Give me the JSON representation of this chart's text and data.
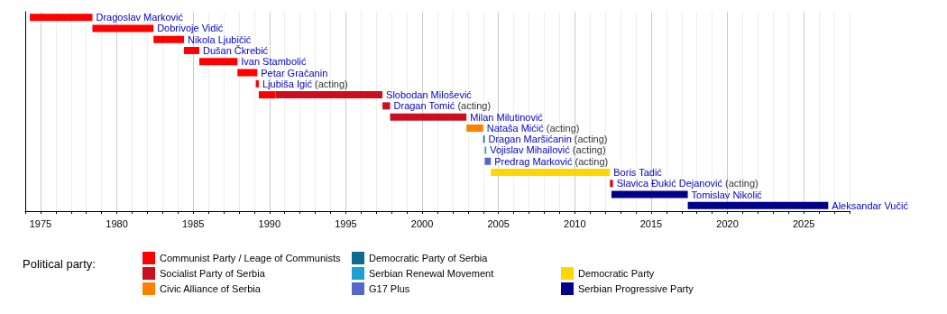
{
  "chart_data": {
    "type": "bar",
    "orientation": "horizontal",
    "stacked": true,
    "legend_title": "Political party:",
    "legend": "bottom",
    "grid": "x",
    "tick_labels": "x",
    "categories": [
      "Dragoslav Marković",
      "Dobrivoje Vidić",
      "Nikola Ljubičić",
      "Dušan Čkrebić",
      "Ivan Stambolić",
      "Petar Gračanin",
      "Ljubiša Igić (acting)",
      "Slobodan Milošević",
      "Dragan Tomić (acting)",
      "Milan Milutinović",
      "Nataša Mićić (acting)",
      "Dragan Maršićanin (acting)",
      "Vojislav Mihailović (acting)",
      "Predrag Marković (acting)",
      "Boris Tadić",
      "Slavica Đukić Dejanović (acting)",
      "Tomislav Nikolić",
      "Aleksandar Vučić"
    ],
    "xlim": [
      1974,
      2028
    ],
    "xticks": [
      1975,
      1980,
      1985,
      1990,
      1995,
      2000,
      2005,
      2010,
      2015,
      2020,
      2025
    ],
    "series": [
      {
        "name": "Communist Party / Leage of Communists",
        "color": "#ff0000",
        "base": [
          1974.3,
          1978.4,
          1982.4,
          1984.4,
          1985.4,
          1987.9,
          1989.1,
          1989.3,
          null,
          null,
          null,
          null,
          null,
          null,
          null,
          null,
          null,
          null
        ],
        "values": [
          4.1,
          4.0,
          2.0,
          1.0,
          2.5,
          1.3,
          0.2,
          1.1,
          null,
          null,
          null,
          null,
          null,
          null,
          null,
          null,
          null,
          null
        ]
      },
      {
        "name": "Socialist Party of Serbia",
        "color": "#cc0f1f",
        "base": [
          null,
          null,
          null,
          null,
          null,
          null,
          null,
          1990.4,
          1997.4,
          1997.9,
          null,
          null,
          null,
          null,
          null,
          2012.3,
          null,
          null
        ],
        "values": [
          null,
          null,
          null,
          null,
          null,
          null,
          null,
          7.0,
          0.5,
          5.0,
          null,
          null,
          null,
          null,
          null,
          0.2,
          null,
          null
        ]
      },
      {
        "name": "Civic Alliance of Serbia",
        "color": "#ff8000",
        "base": [
          null,
          null,
          null,
          null,
          null,
          null,
          null,
          null,
          null,
          null,
          2002.9,
          null,
          null,
          null,
          null,
          null,
          null,
          null
        ],
        "values": [
          null,
          null,
          null,
          null,
          null,
          null,
          null,
          null,
          null,
          null,
          1.1,
          null,
          null,
          null,
          null,
          null,
          null,
          null
        ]
      },
      {
        "name": "Democratic Party of Serbia",
        "color": "#0f6a8f",
        "base": [
          null,
          null,
          null,
          null,
          null,
          null,
          null,
          null,
          null,
          null,
          null,
          2004.0,
          null,
          null,
          null,
          null,
          null,
          null
        ],
        "values": [
          null,
          null,
          null,
          null,
          null,
          null,
          null,
          null,
          null,
          null,
          null,
          0.1,
          null,
          null,
          null,
          null,
          null,
          null
        ]
      },
      {
        "name": "Serbian Renewal Movement",
        "color": "#1aa0d4",
        "base": [
          null,
          null,
          null,
          null,
          null,
          null,
          null,
          null,
          null,
          null,
          null,
          null,
          2004.1,
          null,
          null,
          null,
          null,
          null
        ],
        "values": [
          null,
          null,
          null,
          null,
          null,
          null,
          null,
          null,
          null,
          null,
          null,
          null,
          0.1,
          null,
          null,
          null,
          null,
          null
        ]
      },
      {
        "name": "G17 Plus",
        "color": "#5566cc",
        "base": [
          null,
          null,
          null,
          null,
          null,
          null,
          null,
          null,
          null,
          null,
          null,
          null,
          null,
          2004.1,
          null,
          null,
          null,
          null
        ],
        "values": [
          null,
          null,
          null,
          null,
          null,
          null,
          null,
          null,
          null,
          null,
          null,
          null,
          null,
          0.4,
          null,
          null,
          null,
          null
        ]
      },
      {
        "name": "Democratic Party",
        "color": "#ffd700",
        "base": [
          null,
          null,
          null,
          null,
          null,
          null,
          null,
          null,
          null,
          null,
          null,
          null,
          null,
          null,
          2004.5,
          null,
          null,
          null
        ],
        "values": [
          null,
          null,
          null,
          null,
          null,
          null,
          null,
          null,
          null,
          null,
          null,
          null,
          null,
          null,
          7.8,
          null,
          null,
          null
        ]
      },
      {
        "name": "Serbian Progressive Party",
        "color": "#000088",
        "base": [
          null,
          null,
          null,
          null,
          null,
          null,
          null,
          null,
          null,
          null,
          null,
          null,
          null,
          null,
          null,
          null,
          2012.4,
          2017.4
        ],
        "values": [
          null,
          null,
          null,
          null,
          null,
          null,
          null,
          null,
          null,
          null,
          null,
          null,
          null,
          null,
          null,
          null,
          5.0,
          9.2
        ]
      }
    ]
  }
}
